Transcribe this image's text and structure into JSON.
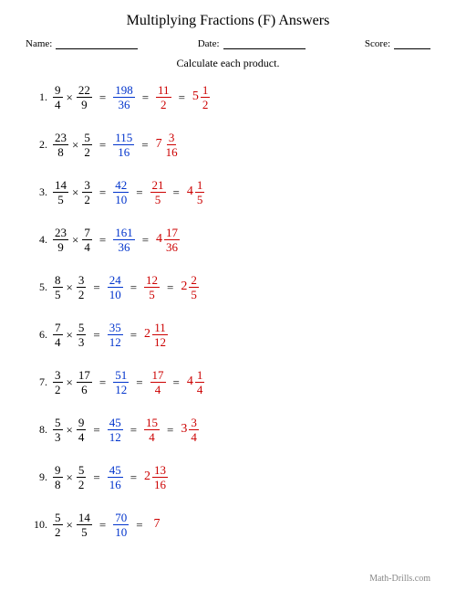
{
  "title": "Multiplying Fractions (F) Answers",
  "labels": {
    "name": "Name:",
    "date": "Date:",
    "score": "Score:"
  },
  "instruction": "Calculate each product.",
  "footer": "Math-Drills.com",
  "problems": [
    {
      "n": "1.",
      "a": {
        "n": "9",
        "d": "4"
      },
      "b": {
        "n": "22",
        "d": "9"
      },
      "p": {
        "n": "198",
        "d": "36"
      },
      "s": {
        "n": "11",
        "d": "2"
      },
      "m": {
        "w": "5",
        "n": "1",
        "d": "2"
      }
    },
    {
      "n": "2.",
      "a": {
        "n": "23",
        "d": "8"
      },
      "b": {
        "n": "5",
        "d": "2"
      },
      "p": {
        "n": "115",
        "d": "16"
      },
      "s": null,
      "m": {
        "w": "7",
        "n": "3",
        "d": "16"
      }
    },
    {
      "n": "3.",
      "a": {
        "n": "14",
        "d": "5"
      },
      "b": {
        "n": "3",
        "d": "2"
      },
      "p": {
        "n": "42",
        "d": "10"
      },
      "s": {
        "n": "21",
        "d": "5"
      },
      "m": {
        "w": "4",
        "n": "1",
        "d": "5"
      }
    },
    {
      "n": "4.",
      "a": {
        "n": "23",
        "d": "9"
      },
      "b": {
        "n": "7",
        "d": "4"
      },
      "p": {
        "n": "161",
        "d": "36"
      },
      "s": null,
      "m": {
        "w": "4",
        "n": "17",
        "d": "36"
      }
    },
    {
      "n": "5.",
      "a": {
        "n": "8",
        "d": "5"
      },
      "b": {
        "n": "3",
        "d": "2"
      },
      "p": {
        "n": "24",
        "d": "10"
      },
      "s": {
        "n": "12",
        "d": "5"
      },
      "m": {
        "w": "2",
        "n": "2",
        "d": "5"
      }
    },
    {
      "n": "6.",
      "a": {
        "n": "7",
        "d": "4"
      },
      "b": {
        "n": "5",
        "d": "3"
      },
      "p": {
        "n": "35",
        "d": "12"
      },
      "s": null,
      "m": {
        "w": "2",
        "n": "11",
        "d": "12"
      }
    },
    {
      "n": "7.",
      "a": {
        "n": "3",
        "d": "2"
      },
      "b": {
        "n": "17",
        "d": "6"
      },
      "p": {
        "n": "51",
        "d": "12"
      },
      "s": {
        "n": "17",
        "d": "4"
      },
      "m": {
        "w": "4",
        "n": "1",
        "d": "4"
      }
    },
    {
      "n": "8.",
      "a": {
        "n": "5",
        "d": "3"
      },
      "b": {
        "n": "9",
        "d": "4"
      },
      "p": {
        "n": "45",
        "d": "12"
      },
      "s": {
        "n": "15",
        "d": "4"
      },
      "m": {
        "w": "3",
        "n": "3",
        "d": "4"
      }
    },
    {
      "n": "9.",
      "a": {
        "n": "9",
        "d": "8"
      },
      "b": {
        "n": "5",
        "d": "2"
      },
      "p": {
        "n": "45",
        "d": "16"
      },
      "s": null,
      "m": {
        "w": "2",
        "n": "13",
        "d": "16"
      }
    },
    {
      "n": "10.",
      "a": {
        "n": "5",
        "d": "2"
      },
      "b": {
        "n": "14",
        "d": "5"
      },
      "p": {
        "n": "70",
        "d": "10"
      },
      "s": null,
      "w": "7"
    }
  ]
}
